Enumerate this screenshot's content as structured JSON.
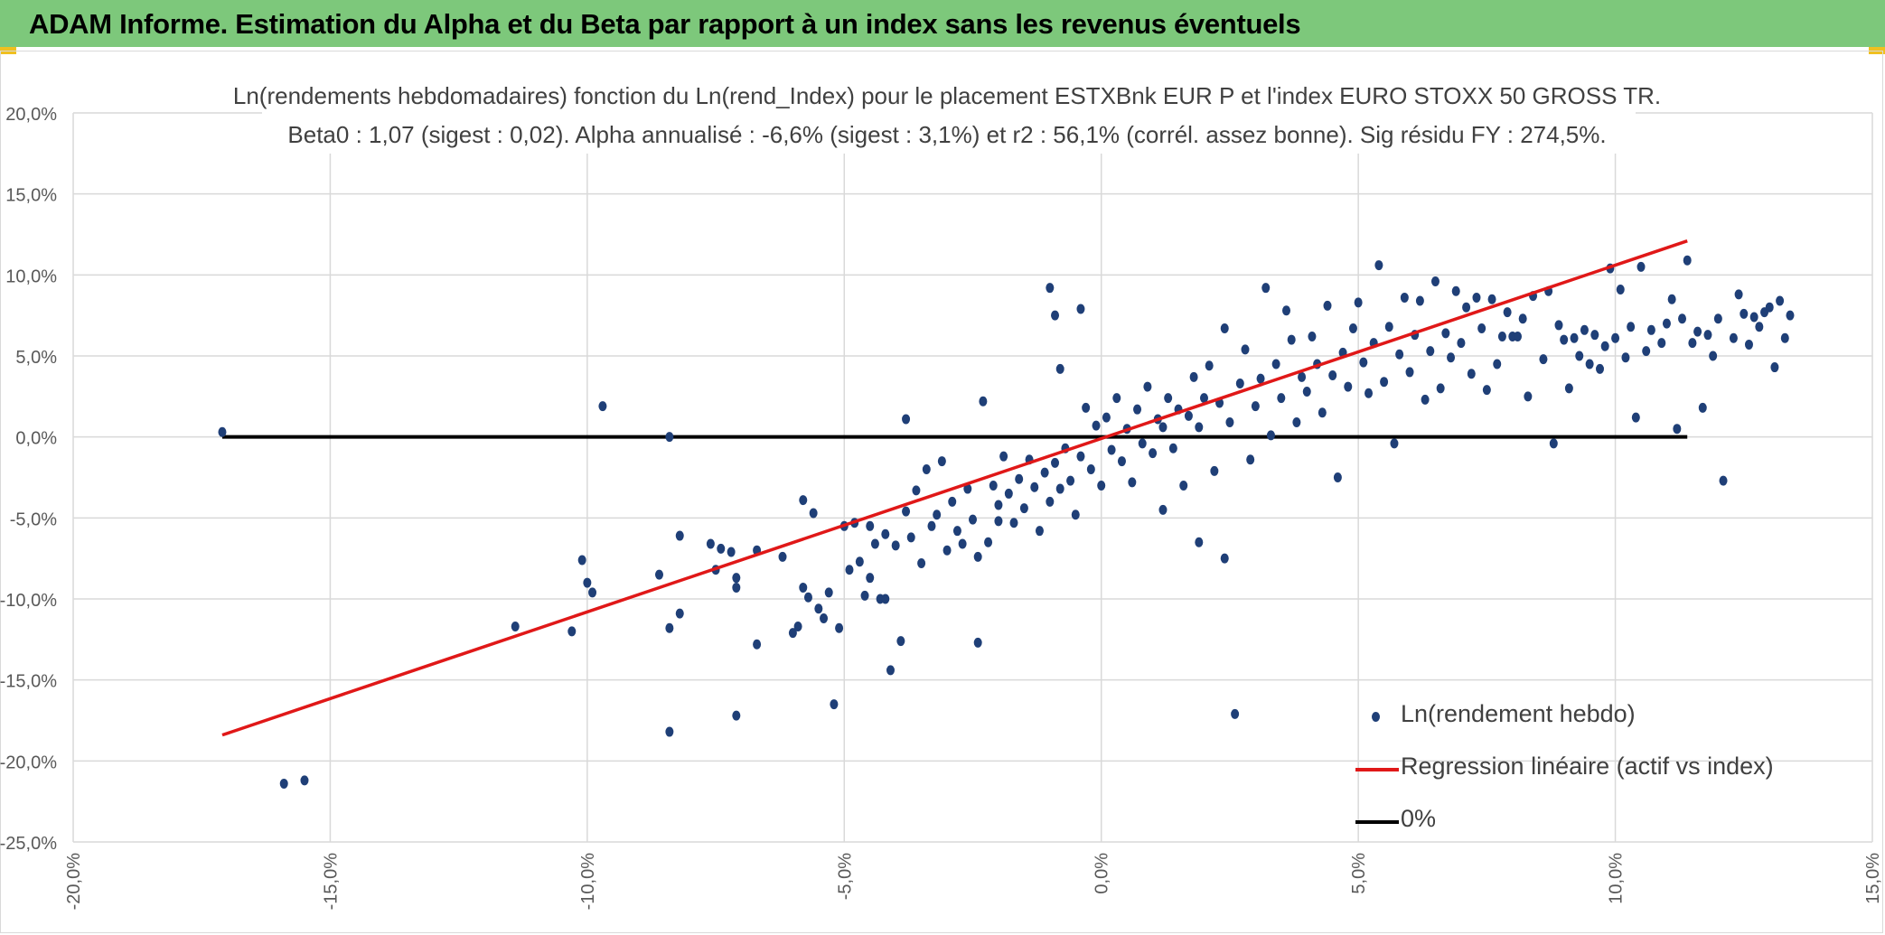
{
  "header": {
    "title": "ADAM Informe. Estimation du Alpha et du Beta par rapport à un index sans les revenus éventuels"
  },
  "colors": {
    "header_bg": "#7dc87b",
    "points": "#1f3f77",
    "regression": "#e01818",
    "zero_line": "#000000",
    "grid": "#d9d9d9",
    "tick_text": "#595959"
  },
  "chart_data": {
    "type": "scatter",
    "title": "Ln(rendements hebdomadaires) fonction du Ln(rend_Index) pour le placement ESTXBnk EUR P et l'index EURO STOXX 50 GROSS TR.",
    "subtitle": "Beta0 : 1,07 (sigest : 0,02). Alpha annualisé : -6,6% (sigest : 3,1%) et r2 : 56,1% (corrél. assez bonne). Sig résidu FY : 274,5%.",
    "xlim": [
      -0.2,
      0.15
    ],
    "ylim": [
      -0.25,
      0.2
    ],
    "x_ticks": [
      -0.2,
      -0.15,
      -0.1,
      -0.05,
      0.0,
      0.05,
      0.1,
      0.15
    ],
    "x_tick_labels": [
      "-20,0%",
      "-15,0%",
      "-10,0%",
      "-5,0%",
      "0,0%",
      "5,0%",
      "10,0%",
      "15,0%"
    ],
    "y_ticks": [
      0.2,
      0.15,
      0.1,
      0.05,
      0.0,
      -0.05,
      -0.1,
      -0.15,
      -0.2,
      -0.25
    ],
    "y_tick_labels": [
      "20,0%",
      "15,0%",
      "10,0%",
      "5,0%",
      "0,0%",
      "-5,0%",
      "-10,0%",
      "-15,0%",
      "-20,0%",
      "-25,0%"
    ],
    "grid": true,
    "legend_position": "bottom-right",
    "series": [
      {
        "name": "Ln(rendement hebdo)",
        "kind": "scatter",
        "points": [
          [
            -0.171,
            0.003
          ],
          [
            -0.159,
            -0.214
          ],
          [
            -0.155,
            -0.212
          ],
          [
            -0.114,
            -0.117
          ],
          [
            -0.103,
            -0.12
          ],
          [
            -0.101,
            -0.076
          ],
          [
            -0.1,
            -0.09
          ],
          [
            -0.099,
            -0.096
          ],
          [
            -0.097,
            0.019
          ],
          [
            -0.086,
            -0.085
          ],
          [
            -0.084,
            -0.118
          ],
          [
            -0.084,
            -0.182
          ],
          [
            -0.084,
            0.0
          ],
          [
            -0.082,
            -0.109
          ],
          [
            -0.082,
            -0.061
          ],
          [
            -0.076,
            -0.066
          ],
          [
            -0.075,
            -0.082
          ],
          [
            -0.074,
            -0.069
          ],
          [
            -0.072,
            -0.071
          ],
          [
            -0.071,
            -0.087
          ],
          [
            -0.071,
            -0.093
          ],
          [
            -0.071,
            -0.172
          ],
          [
            -0.067,
            -0.07
          ],
          [
            -0.067,
            -0.128
          ],
          [
            -0.062,
            -0.074
          ],
          [
            -0.06,
            -0.121
          ],
          [
            -0.059,
            -0.117
          ],
          [
            -0.058,
            -0.039
          ],
          [
            -0.058,
            -0.093
          ],
          [
            -0.057,
            -0.099
          ],
          [
            -0.056,
            -0.047
          ],
          [
            -0.055,
            -0.106
          ],
          [
            -0.054,
            -0.112
          ],
          [
            -0.053,
            -0.096
          ],
          [
            -0.052,
            -0.165
          ],
          [
            -0.051,
            -0.118
          ],
          [
            -0.05,
            -0.055
          ],
          [
            -0.049,
            -0.082
          ],
          [
            -0.048,
            -0.053
          ],
          [
            -0.047,
            -0.077
          ],
          [
            -0.046,
            -0.098
          ],
          [
            -0.045,
            -0.055
          ],
          [
            -0.045,
            -0.087
          ],
          [
            -0.044,
            -0.066
          ],
          [
            -0.043,
            -0.1
          ],
          [
            -0.042,
            -0.1
          ],
          [
            -0.042,
            -0.06
          ],
          [
            -0.041,
            -0.144
          ],
          [
            -0.04,
            -0.067
          ],
          [
            -0.039,
            -0.126
          ],
          [
            -0.038,
            0.011
          ],
          [
            -0.038,
            -0.046
          ],
          [
            -0.037,
            -0.062
          ],
          [
            -0.036,
            -0.033
          ],
          [
            -0.035,
            -0.078
          ],
          [
            -0.034,
            -0.02
          ],
          [
            -0.033,
            -0.055
          ],
          [
            -0.032,
            -0.048
          ],
          [
            -0.031,
            -0.015
          ],
          [
            -0.03,
            -0.07
          ],
          [
            -0.029,
            -0.04
          ],
          [
            -0.028,
            -0.058
          ],
          [
            -0.027,
            -0.066
          ],
          [
            -0.026,
            -0.032
          ],
          [
            -0.025,
            -0.051
          ],
          [
            -0.024,
            -0.074
          ],
          [
            -0.024,
            -0.127
          ],
          [
            -0.023,
            0.022
          ],
          [
            -0.022,
            -0.065
          ],
          [
            -0.021,
            -0.03
          ],
          [
            -0.02,
            -0.052
          ],
          [
            -0.02,
            -0.042
          ],
          [
            -0.019,
            -0.012
          ],
          [
            -0.018,
            -0.035
          ],
          [
            -0.017,
            -0.053
          ],
          [
            -0.016,
            -0.026
          ],
          [
            -0.015,
            -0.044
          ],
          [
            -0.014,
            -0.014
          ],
          [
            -0.013,
            -0.031
          ],
          [
            -0.012,
            -0.058
          ],
          [
            -0.011,
            -0.022
          ],
          [
            -0.01,
            0.092
          ],
          [
            -0.01,
            -0.04
          ],
          [
            -0.009,
            0.075
          ],
          [
            -0.009,
            -0.016
          ],
          [
            -0.008,
            -0.032
          ],
          [
            -0.008,
            0.042
          ],
          [
            -0.007,
            -0.007
          ],
          [
            -0.006,
            -0.027
          ],
          [
            -0.005,
            -0.048
          ],
          [
            -0.004,
            0.079
          ],
          [
            -0.004,
            -0.012
          ],
          [
            -0.003,
            0.018
          ],
          [
            -0.002,
            -0.02
          ],
          [
            -0.001,
            0.007
          ],
          [
            0.0,
            -0.03
          ],
          [
            0.001,
            0.012
          ],
          [
            0.002,
            -0.008
          ],
          [
            0.003,
            0.024
          ],
          [
            0.004,
            -0.015
          ],
          [
            0.005,
            0.005
          ],
          [
            0.006,
            -0.028
          ],
          [
            0.007,
            0.017
          ],
          [
            0.008,
            -0.004
          ],
          [
            0.009,
            0.031
          ],
          [
            0.01,
            -0.01
          ],
          [
            0.011,
            0.011
          ],
          [
            0.012,
            -0.045
          ],
          [
            0.012,
            0.006
          ],
          [
            0.013,
            0.024
          ],
          [
            0.014,
            -0.007
          ],
          [
            0.015,
            0.017
          ],
          [
            0.016,
            -0.03
          ],
          [
            0.017,
            0.013
          ],
          [
            0.018,
            0.037
          ],
          [
            0.019,
            -0.065
          ],
          [
            0.019,
            0.006
          ],
          [
            0.02,
            0.024
          ],
          [
            0.021,
            0.044
          ],
          [
            0.022,
            -0.021
          ],
          [
            0.023,
            0.021
          ],
          [
            0.024,
            -0.075
          ],
          [
            0.024,
            0.067
          ],
          [
            0.025,
            0.009
          ],
          [
            0.026,
            -0.171
          ],
          [
            0.027,
            0.033
          ],
          [
            0.028,
            0.054
          ],
          [
            0.029,
            -0.014
          ],
          [
            0.03,
            0.019
          ],
          [
            0.031,
            0.036
          ],
          [
            0.032,
            0.092
          ],
          [
            0.033,
            0.001
          ],
          [
            0.034,
            0.045
          ],
          [
            0.035,
            0.024
          ],
          [
            0.036,
            0.078
          ],
          [
            0.037,
            0.06
          ],
          [
            0.038,
            0.009
          ],
          [
            0.039,
            0.037
          ],
          [
            0.04,
            0.028
          ],
          [
            0.041,
            0.062
          ],
          [
            0.042,
            0.045
          ],
          [
            0.043,
            0.015
          ],
          [
            0.044,
            0.081
          ],
          [
            0.045,
            0.038
          ],
          [
            0.046,
            -0.025
          ],
          [
            0.047,
            0.052
          ],
          [
            0.048,
            0.031
          ],
          [
            0.049,
            0.067
          ],
          [
            0.05,
            0.083
          ],
          [
            0.051,
            0.046
          ],
          [
            0.052,
            0.027
          ],
          [
            0.053,
            0.058
          ],
          [
            0.054,
            0.106
          ],
          [
            0.055,
            0.034
          ],
          [
            0.056,
            0.068
          ],
          [
            0.057,
            -0.004
          ],
          [
            0.058,
            0.051
          ],
          [
            0.059,
            0.086
          ],
          [
            0.06,
            0.04
          ],
          [
            0.061,
            0.063
          ],
          [
            0.062,
            0.084
          ],
          [
            0.063,
            0.023
          ],
          [
            0.064,
            0.053
          ],
          [
            0.065,
            0.096
          ],
          [
            0.066,
            0.03
          ],
          [
            0.067,
            0.064
          ],
          [
            0.068,
            0.049
          ],
          [
            0.069,
            0.09
          ],
          [
            0.07,
            0.058
          ],
          [
            0.071,
            0.08
          ],
          [
            0.072,
            0.039
          ],
          [
            0.073,
            0.086
          ],
          [
            0.074,
            0.067
          ],
          [
            0.075,
            0.029
          ],
          [
            0.076,
            0.085
          ],
          [
            0.077,
            0.045
          ],
          [
            0.078,
            0.062
          ],
          [
            0.079,
            0.077
          ],
          [
            0.08,
            0.062
          ],
          [
            0.081,
            0.062
          ],
          [
            0.082,
            0.073
          ],
          [
            0.083,
            0.025
          ],
          [
            0.084,
            0.087
          ],
          [
            0.086,
            0.048
          ],
          [
            0.087,
            0.09
          ],
          [
            0.088,
            -0.004
          ],
          [
            0.089,
            0.069
          ],
          [
            0.09,
            0.06
          ],
          [
            0.091,
            0.03
          ],
          [
            0.092,
            0.061
          ],
          [
            0.093,
            0.05
          ],
          [
            0.094,
            0.066
          ],
          [
            0.095,
            0.045
          ],
          [
            0.096,
            0.063
          ],
          [
            0.097,
            0.042
          ],
          [
            0.098,
            0.056
          ],
          [
            0.099,
            0.104
          ],
          [
            0.1,
            0.061
          ],
          [
            0.101,
            0.091
          ],
          [
            0.102,
            0.049
          ],
          [
            0.103,
            0.068
          ],
          [
            0.104,
            0.012
          ],
          [
            0.105,
            0.105
          ],
          [
            0.106,
            0.053
          ],
          [
            0.107,
            0.066
          ],
          [
            0.109,
            0.058
          ],
          [
            0.11,
            0.07
          ],
          [
            0.111,
            0.085
          ],
          [
            0.112,
            0.005
          ],
          [
            0.113,
            0.073
          ],
          [
            0.114,
            0.109
          ],
          [
            0.115,
            0.058
          ],
          [
            0.116,
            0.065
          ],
          [
            0.117,
            0.018
          ],
          [
            0.118,
            0.063
          ],
          [
            0.119,
            0.05
          ],
          [
            0.12,
            0.073
          ],
          [
            0.121,
            -0.027
          ],
          [
            0.123,
            0.061
          ],
          [
            0.124,
            0.088
          ],
          [
            0.125,
            0.076
          ],
          [
            0.126,
            0.057
          ],
          [
            0.127,
            0.074
          ],
          [
            0.128,
            0.068
          ],
          [
            0.129,
            0.077
          ],
          [
            0.13,
            0.08
          ],
          [
            0.131,
            0.043
          ],
          [
            0.132,
            0.084
          ],
          [
            0.133,
            0.061
          ],
          [
            0.134,
            0.075
          ]
        ]
      },
      {
        "name": "Regression linéaire (actif vs index)",
        "kind": "line",
        "points": [
          [
            -0.171,
            -0.184
          ],
          [
            0.114,
            0.121
          ]
        ]
      },
      {
        "name": "0%",
        "kind": "line",
        "points": [
          [
            -0.171,
            0.0
          ],
          [
            0.114,
            0.0
          ]
        ]
      }
    ]
  }
}
